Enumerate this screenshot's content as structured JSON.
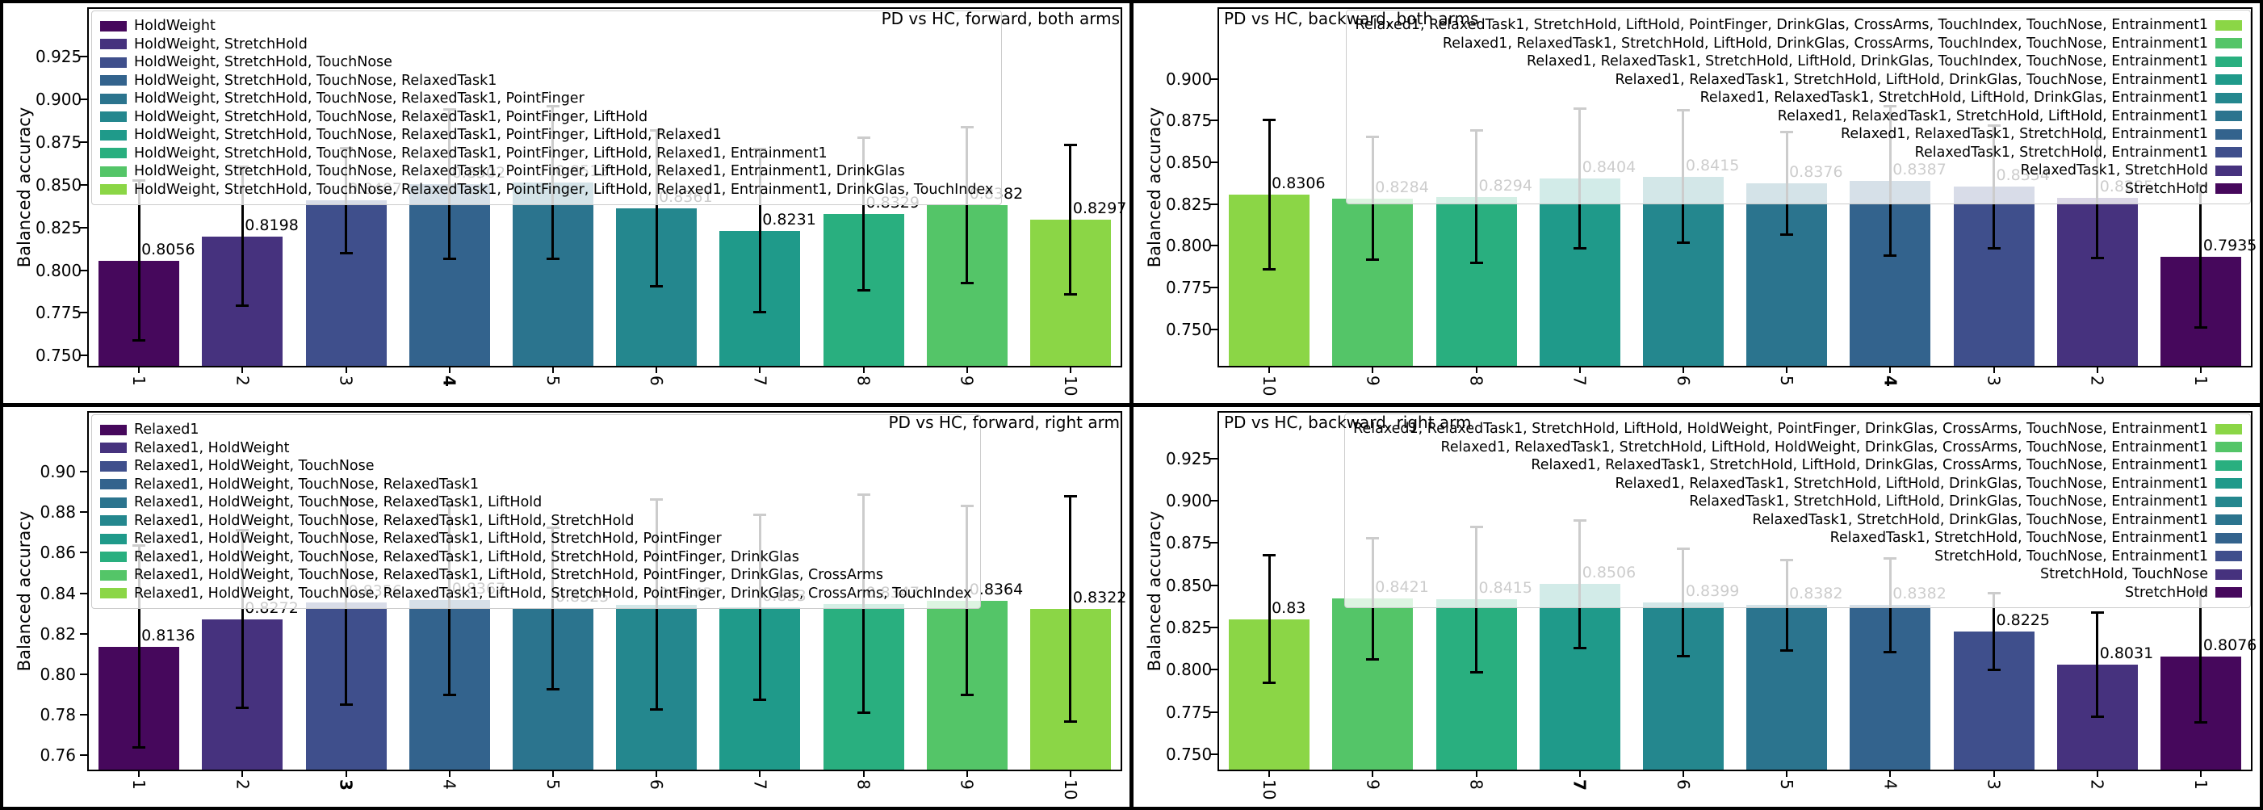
{
  "figure": {
    "background": "#000000",
    "panel_background": "#ffffff",
    "ylabel": "Balanced accuracy",
    "palette": [
      "#46085c",
      "#46327e",
      "#3f4f8c",
      "#33638d",
      "#2b748e",
      "#24878e",
      "#1f9a8a",
      "#29af7f",
      "#54c568",
      "#8bd646"
    ],
    "error_bar_color": "#000000",
    "legend_border_color": "#cccccc"
  },
  "chart_data": [
    {
      "type": "bar",
      "title": "PD vs HC, forward, both arms",
      "title_loc": "right",
      "xlabel": "",
      "ylabel": "Balanced accuracy",
      "categories": [
        "1",
        "2",
        "3",
        "4",
        "5",
        "6",
        "7",
        "8",
        "9",
        "10"
      ],
      "bold_category": "4",
      "values": [
        0.8056,
        0.8198,
        0.8407,
        0.8502,
        0.8513,
        0.8361,
        0.8231,
        0.8329,
        0.8382,
        0.8297
      ],
      "labels": [
        "0.8056",
        "0.8198",
        "0.8407",
        "0.8502",
        "0.8513",
        "0.8361",
        "0.8231",
        "0.8329",
        "0.8382",
        "0.8297"
      ],
      "errors": [
        0.047,
        0.041,
        0.031,
        0.044,
        0.045,
        0.046,
        0.048,
        0.045,
        0.046,
        0.044
      ],
      "ylim": [
        0.743,
        0.954
      ],
      "yticks": [
        "0.750",
        "0.775",
        "0.800",
        "0.825",
        "0.850",
        "0.875",
        "0.900",
        "0.925"
      ],
      "grid": false,
      "color_order": "normal",
      "legend_loc": "upper left",
      "legend": [
        "HoldWeight",
        "HoldWeight, StretchHold",
        "HoldWeight, StretchHold, TouchNose",
        "HoldWeight, StretchHold, TouchNose, RelaxedTask1",
        "HoldWeight, StretchHold, TouchNose, RelaxedTask1, PointFinger",
        "HoldWeight, StretchHold, TouchNose, RelaxedTask1, PointFinger, LiftHold",
        "HoldWeight, StretchHold, TouchNose, RelaxedTask1, PointFinger, LiftHold, Relaxed1",
        "HoldWeight, StretchHold, TouchNose, RelaxedTask1, PointFinger, LiftHold, Relaxed1, Entrainment1",
        "HoldWeight, StretchHold, TouchNose, RelaxedTask1, PointFinger, LiftHold, Relaxed1, Entrainment1, DrinkGlas",
        "HoldWeight, StretchHold, TouchNose, RelaxedTask1, PointFinger, LiftHold, Relaxed1, Entrainment1, DrinkGlas, TouchIndex"
      ]
    },
    {
      "type": "bar",
      "title": "PD vs HC, backward, both arms",
      "title_loc": "left",
      "xlabel": "",
      "ylabel": "Balanced accuracy",
      "categories": [
        "10",
        "9",
        "8",
        "7",
        "6",
        "5",
        "4",
        "3",
        "2",
        "1"
      ],
      "bold_category": "4",
      "values": [
        0.8306,
        0.8284,
        0.8294,
        0.8404,
        0.8415,
        0.8376,
        0.8387,
        0.8354,
        0.8285,
        0.7935
      ],
      "labels": [
        "0.8306",
        "0.8284",
        "0.8294",
        "0.8404",
        "0.8415",
        "0.8376",
        "0.8387",
        "0.8354",
        "0.8285",
        "0.7935"
      ],
      "errors": [
        0.045,
        0.037,
        0.04,
        0.042,
        0.04,
        0.031,
        0.045,
        0.037,
        0.036,
        0.043
      ],
      "ylim": [
        0.727,
        0.943
      ],
      "yticks": [
        "0.750",
        "0.775",
        "0.800",
        "0.825",
        "0.850",
        "0.875",
        "0.900"
      ],
      "grid": false,
      "color_order": "reversed",
      "legend_loc": "upper right",
      "legend": [
        "Relaxed1, RelaxedTask1, StretchHold, LiftHold, PointFinger, DrinkGlas, CrossArms, TouchIndex, TouchNose, Entrainment1",
        "Relaxed1, RelaxedTask1, StretchHold, LiftHold, DrinkGlas, CrossArms, TouchIndex, TouchNose, Entrainment1",
        "Relaxed1, RelaxedTask1, StretchHold, LiftHold, DrinkGlas, TouchIndex, TouchNose, Entrainment1",
        "Relaxed1, RelaxedTask1, StretchHold, LiftHold, DrinkGlas, TouchNose, Entrainment1",
        "Relaxed1, RelaxedTask1, StretchHold, LiftHold, DrinkGlas, Entrainment1",
        "Relaxed1, RelaxedTask1, StretchHold, LiftHold, Entrainment1",
        "Relaxed1, RelaxedTask1, StretchHold, Entrainment1",
        "RelaxedTask1, StretchHold, Entrainment1",
        "RelaxedTask1, StretchHold",
        "StretchHold"
      ]
    },
    {
      "type": "bar",
      "title": "PD vs HC, forward, right arm",
      "title_loc": "right",
      "xlabel": "",
      "ylabel": "Balanced accuracy",
      "categories": [
        "1",
        "2",
        "3",
        "4",
        "5",
        "6",
        "7",
        "8",
        "9",
        "10"
      ],
      "bold_category": "3",
      "values": [
        0.8136,
        0.8272,
        0.8356,
        0.8367,
        0.8325,
        0.8343,
        0.833,
        0.8347,
        0.8364,
        0.8322
      ],
      "labels": [
        "0.8136",
        "0.8272",
        "0.8356",
        "0.8367",
        "0.8325",
        "0.8343",
        "0.833",
        "0.8347",
        "0.8364",
        "0.8322"
      ],
      "errors": [
        0.05,
        0.044,
        0.051,
        0.047,
        0.04,
        0.052,
        0.046,
        0.054,
        0.047,
        0.056
      ],
      "ylim": [
        0.752,
        0.93
      ],
      "yticks": [
        "0.76",
        "0.78",
        "0.80",
        "0.82",
        "0.84",
        "0.86",
        "0.88",
        "0.90"
      ],
      "grid": false,
      "color_order": "normal",
      "legend_loc": "upper left",
      "legend": [
        "Relaxed1",
        "Relaxed1, HoldWeight",
        "Relaxed1, HoldWeight, TouchNose",
        "Relaxed1, HoldWeight, TouchNose, RelaxedTask1",
        "Relaxed1, HoldWeight, TouchNose, RelaxedTask1, LiftHold",
        "Relaxed1, HoldWeight, TouchNose, RelaxedTask1, LiftHold, StretchHold",
        "Relaxed1, HoldWeight, TouchNose, RelaxedTask1, LiftHold, StretchHold, PointFinger",
        "Relaxed1, HoldWeight, TouchNose, RelaxedTask1, LiftHold, StretchHold, PointFinger, DrinkGlas",
        "Relaxed1, HoldWeight, TouchNose, RelaxedTask1, LiftHold, StretchHold, PointFinger, DrinkGlas, CrossArms",
        "Relaxed1, HoldWeight, TouchNose, RelaxedTask1, LiftHold, StretchHold, PointFinger, DrinkGlas, CrossArms, TouchIndex"
      ]
    },
    {
      "type": "bar",
      "title": "PD vs HC, backward, right arm",
      "title_loc": "left",
      "xlabel": "",
      "ylabel": "Balanced accuracy",
      "categories": [
        "10",
        "9",
        "8",
        "7",
        "6",
        "5",
        "4",
        "3",
        "2",
        "1"
      ],
      "bold_category": "7",
      "values": [
        0.83,
        0.8421,
        0.8415,
        0.8506,
        0.8399,
        0.8382,
        0.8382,
        0.8225,
        0.8031,
        0.8076
      ],
      "labels": [
        "0.83",
        "0.8421",
        "0.8415",
        "0.8506",
        "0.8399",
        "0.8382",
        "0.8382",
        "0.8225",
        "0.8031",
        "0.8076"
      ],
      "errors": [
        0.038,
        0.036,
        0.043,
        0.038,
        0.032,
        0.027,
        0.028,
        0.023,
        0.031,
        0.039
      ],
      "ylim": [
        0.74,
        0.953
      ],
      "yticks": [
        "0.750",
        "0.775",
        "0.800",
        "0.825",
        "0.850",
        "0.875",
        "0.900",
        "0.925"
      ],
      "grid": false,
      "color_order": "reversed",
      "legend_loc": "upper right",
      "legend": [
        "Relaxed1, RelaxedTask1, StretchHold, LiftHold, HoldWeight, PointFinger, DrinkGlas, CrossArms, TouchNose, Entrainment1",
        "Relaxed1, RelaxedTask1, StretchHold, LiftHold, HoldWeight, DrinkGlas, CrossArms, TouchNose, Entrainment1",
        "Relaxed1, RelaxedTask1, StretchHold, LiftHold, DrinkGlas, CrossArms, TouchNose, Entrainment1",
        "Relaxed1, RelaxedTask1, StretchHold, LiftHold, DrinkGlas, TouchNose, Entrainment1",
        "RelaxedTask1, StretchHold, LiftHold, DrinkGlas, TouchNose, Entrainment1",
        "RelaxedTask1, StretchHold, DrinkGlas, TouchNose, Entrainment1",
        "RelaxedTask1, StretchHold, TouchNose, Entrainment1",
        "StretchHold, TouchNose, Entrainment1",
        "StretchHold, TouchNose",
        "StretchHold"
      ]
    }
  ]
}
